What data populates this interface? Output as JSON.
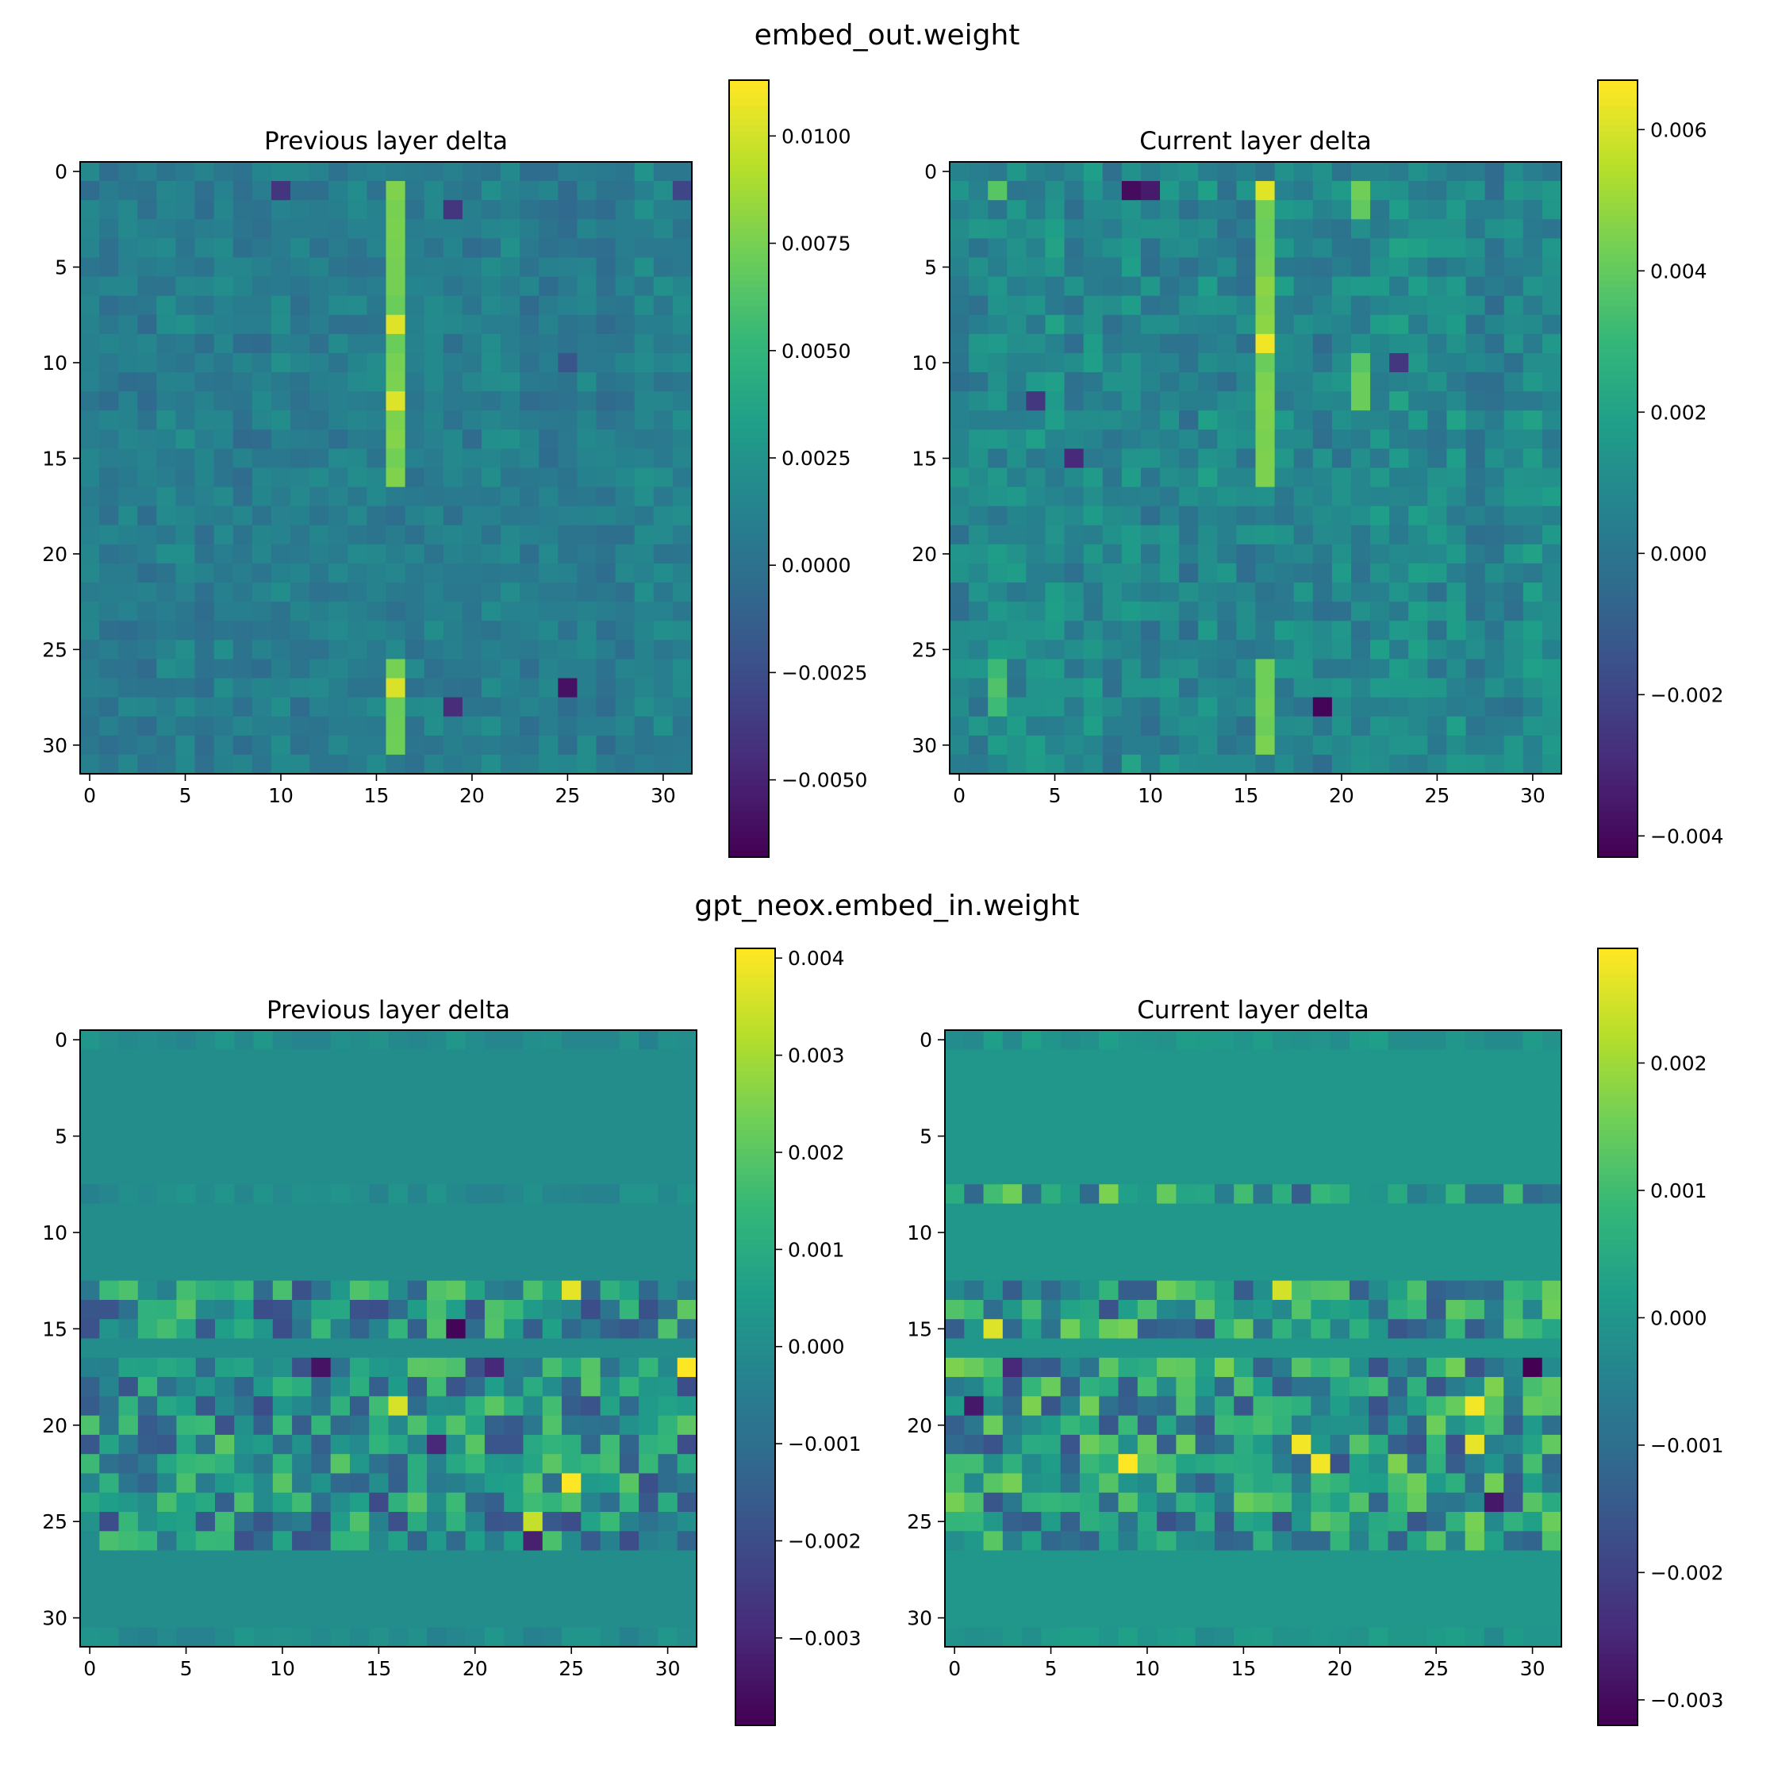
{
  "figure": {
    "groups": [
      {
        "suptitle": "embed_out.weight"
      },
      {
        "suptitle": "gpt_neox.embed_in.weight"
      }
    ]
  },
  "colormap": "viridis",
  "chart_data": [
    {
      "type": "heatmap",
      "group": "embed_out.weight",
      "title": "Previous layer delta",
      "rows": 32,
      "cols": 32,
      "xticks": [
        "0",
        "5",
        "10",
        "15",
        "20",
        "25",
        "30"
      ],
      "yticks": [
        "0",
        "5",
        "10",
        "15",
        "20",
        "25",
        "30"
      ],
      "vmin": -0.0068,
      "vmax": 0.0113,
      "colorbar_ticks": [
        {
          "value": 0.01,
          "label": "0.0100"
        },
        {
          "value": 0.0075,
          "label": "0.0075"
        },
        {
          "value": 0.005,
          "label": "0.0050"
        },
        {
          "value": 0.0025,
          "label": "0.0025"
        },
        {
          "value": 0.0,
          "label": "0.0000"
        },
        {
          "value": -0.0025,
          "label": "−0.0025"
        },
        {
          "value": -0.005,
          "label": "−0.0050"
        }
      ],
      "pattern": {
        "base": 0.0009,
        "noise": 0.0014,
        "seed": 11,
        "rows_active": [
          0,
          31
        ],
        "hot_columns": [
          {
            "col": 16,
            "value": 0.0075,
            "rows": [
              1,
              2,
              3,
              4,
              5,
              6,
              7,
              8,
              9,
              10,
              11,
              12,
              13,
              14,
              15,
              16,
              26,
              27,
              28,
              29,
              30
            ]
          },
          {
            "col": 16,
            "value": 0.0105,
            "rows": [
              8,
              12,
              27
            ]
          }
        ],
        "cold_cells": [
          [
            1,
            10,
            -0.004
          ],
          [
            2,
            19,
            -0.004
          ],
          [
            27,
            25,
            -0.006
          ],
          [
            28,
            19,
            -0.0045
          ],
          [
            1,
            31,
            -0.003
          ],
          [
            10,
            25,
            -0.002
          ]
        ]
      }
    },
    {
      "type": "heatmap",
      "group": "embed_out.weight",
      "title": "Current layer delta",
      "rows": 32,
      "cols": 32,
      "xticks": [
        "0",
        "5",
        "10",
        "15",
        "20",
        "25",
        "30"
      ],
      "yticks": [
        "0",
        "5",
        "10",
        "15",
        "20",
        "25",
        "30"
      ],
      "vmin": -0.0043,
      "vmax": 0.0067,
      "colorbar_ticks": [
        {
          "value": 0.006,
          "label": "0.006"
        },
        {
          "value": 0.004,
          "label": "0.004"
        },
        {
          "value": 0.002,
          "label": "0.002"
        },
        {
          "value": 0.0,
          "label": "0.000"
        },
        {
          "value": -0.002,
          "label": "−0.002"
        },
        {
          "value": -0.004,
          "label": "−0.004"
        }
      ],
      "pattern": {
        "base": 0.0008,
        "noise": 0.0012,
        "seed": 23,
        "rows_active": [
          0,
          31
        ],
        "hot_columns": [
          {
            "col": 16,
            "value": 0.0045,
            "rows": [
              1,
              2,
              3,
              4,
              5,
              6,
              7,
              8,
              9,
              10,
              11,
              12,
              13,
              14,
              15,
              16,
              26,
              27,
              28,
              29,
              30
            ]
          },
          {
            "col": 16,
            "value": 0.0064,
            "rows": [
              1,
              9
            ]
          },
          {
            "col": 21,
            "value": 0.004,
            "rows": [
              1,
              2,
              10,
              11,
              12
            ]
          },
          {
            "col": 2,
            "value": 0.0035,
            "rows": [
              1,
              26,
              27,
              28
            ]
          }
        ],
        "cold_cells": [
          [
            1,
            9,
            -0.004
          ],
          [
            1,
            10,
            -0.0035
          ],
          [
            15,
            6,
            -0.003
          ],
          [
            28,
            19,
            -0.0042
          ],
          [
            12,
            4,
            -0.0025
          ],
          [
            10,
            23,
            -0.0025
          ]
        ]
      }
    },
    {
      "type": "heatmap",
      "group": "gpt_neox.embed_in.weight",
      "title": "Previous layer delta",
      "rows": 32,
      "cols": 32,
      "xticks": [
        "0",
        "5",
        "10",
        "15",
        "20",
        "25",
        "30"
      ],
      "yticks": [
        "0",
        "5",
        "10",
        "15",
        "20",
        "25",
        "30"
      ],
      "vmin": -0.0039,
      "vmax": 0.0041,
      "colorbar_ticks": [
        {
          "value": 0.004,
          "label": "0.004"
        },
        {
          "value": 0.003,
          "label": "0.003"
        },
        {
          "value": 0.002,
          "label": "0.002"
        },
        {
          "value": 0.001,
          "label": "0.001"
        },
        {
          "value": 0.0,
          "label": "0.000"
        },
        {
          "value": -0.001,
          "label": "−0.001"
        },
        {
          "value": -0.002,
          "label": "−0.002"
        },
        {
          "value": -0.003,
          "label": "−0.003"
        }
      ],
      "pattern": {
        "base": 0.0,
        "noise": 0.0016,
        "seed": 37,
        "active_rows": [
          0,
          8,
          13,
          14,
          15,
          17,
          18,
          19,
          20,
          21,
          22,
          23,
          24,
          25,
          26,
          31
        ],
        "light_rows": [
          0,
          8,
          31
        ],
        "hot_cells": [
          [
            13,
            25,
            0.0038
          ],
          [
            17,
            31,
            0.0041
          ],
          [
            23,
            25,
            0.0041
          ],
          [
            19,
            16,
            0.0036
          ],
          [
            25,
            23,
            0.0034
          ]
        ],
        "cold_cells": [
          [
            15,
            19,
            -0.0038
          ],
          [
            17,
            12,
            -0.0035
          ],
          [
            17,
            21,
            -0.003
          ],
          [
            26,
            23,
            -0.0032
          ],
          [
            21,
            18,
            -0.003
          ]
        ]
      }
    },
    {
      "type": "heatmap",
      "group": "gpt_neox.embed_in.weight",
      "title": "Current layer delta",
      "rows": 32,
      "cols": 32,
      "xticks": [
        "0",
        "5",
        "10",
        "15",
        "20",
        "25",
        "30"
      ],
      "yticks": [
        "0",
        "5",
        "10",
        "15",
        "20",
        "25",
        "30"
      ],
      "vmin": -0.0032,
      "vmax": 0.0029,
      "colorbar_ticks": [
        {
          "value": 0.002,
          "label": "0.002"
        },
        {
          "value": 0.001,
          "label": "0.001"
        },
        {
          "value": 0.0,
          "label": "0.000"
        },
        {
          "value": -0.001,
          "label": "−0.001"
        },
        {
          "value": -0.002,
          "label": "−0.002"
        },
        {
          "value": -0.003,
          "label": "−0.003"
        }
      ],
      "pattern": {
        "base": 0.0,
        "noise": 0.0013,
        "seed": 53,
        "active_rows": [
          0,
          8,
          13,
          14,
          15,
          17,
          18,
          19,
          20,
          21,
          22,
          23,
          24,
          25,
          26,
          31
        ],
        "light_rows": [
          0,
          31
        ],
        "hot_cells": [
          [
            22,
            9,
            0.0029
          ],
          [
            21,
            18,
            0.0028
          ],
          [
            22,
            19,
            0.0028
          ],
          [
            19,
            27,
            0.0028
          ],
          [
            21,
            27,
            0.0027
          ],
          [
            15,
            2,
            0.0026
          ],
          [
            13,
            17,
            0.0025
          ]
        ],
        "cold_cells": [
          [
            17,
            30,
            -0.0032
          ],
          [
            19,
            1,
            -0.0028
          ],
          [
            24,
            28,
            -0.0028
          ],
          [
            17,
            3,
            -0.0025
          ]
        ]
      }
    }
  ]
}
